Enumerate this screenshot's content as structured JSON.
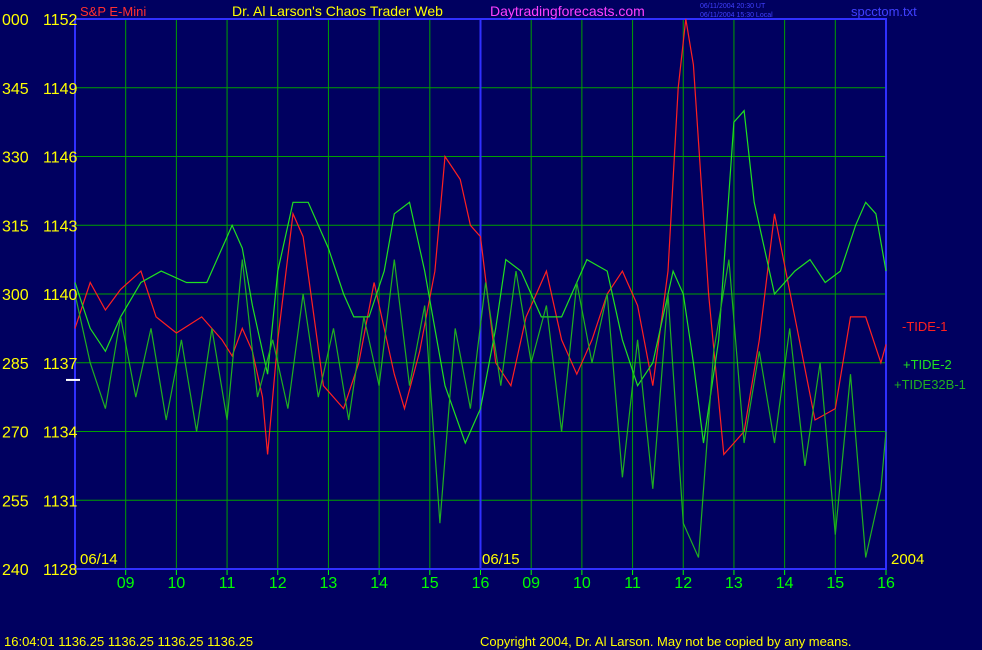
{
  "header": {
    "instrument": "S&P E-Mini",
    "title": "Dr. Al Larson's Chaos Trader Web",
    "site": "Daytradingforecasts.com",
    "time_utc": "06/11/2004 20:30 UT",
    "time_local": "06/11/2004 15:30 Local",
    "filename": "spcctom.txt"
  },
  "footer": {
    "quote": "16:04:01  1136.25 1136.25 1136.25 1136.25",
    "copyright": "Copyright 2004, Dr. Al Larson. May not be copied by any means."
  },
  "colors": {
    "background": "#000060",
    "grid": "#00a000",
    "frame": "#3030ff",
    "price_label": "#ffff00",
    "time_label": "#00ff00",
    "header_title": "#ffff00",
    "header_site": "#ff40ff",
    "instrument": "#ff3030",
    "tide1": "#ff2020",
    "tide2": "#20e020",
    "tide32b": "#20b020"
  },
  "chart_data": {
    "type": "line",
    "title": "Dr. Al Larson's Chaos Trader Web",
    "y_ticks": [
      {
        "left": "000",
        "price": "1152",
        "value": 1152
      },
      {
        "left": "345",
        "price": "1149",
        "value": 1149
      },
      {
        "left": "330",
        "price": "1146",
        "value": 1146
      },
      {
        "left": "315",
        "price": "1143",
        "value": 1143
      },
      {
        "left": "300",
        "price": "1140",
        "value": 1140
      },
      {
        "left": "285",
        "price": "1137",
        "value": 1137
      },
      {
        "left": "270",
        "price": "1134",
        "value": 1134
      },
      {
        "left": "255",
        "price": "1131",
        "value": 1131
      },
      {
        "left": "240",
        "price": "1128",
        "value": 1128
      }
    ],
    "ylim": [
      1128,
      1152
    ],
    "x_ticks": [
      {
        "label": "09",
        "hour": 1
      },
      {
        "label": "10",
        "hour": 2
      },
      {
        "label": "11",
        "hour": 3
      },
      {
        "label": "12",
        "hour": 4
      },
      {
        "label": "13",
        "hour": 5
      },
      {
        "label": "14",
        "hour": 6
      },
      {
        "label": "15",
        "hour": 7
      },
      {
        "label": "16",
        "hour": 8
      },
      {
        "label": "09",
        "hour": 9
      },
      {
        "label": "10",
        "hour": 10
      },
      {
        "label": "11",
        "hour": 11
      },
      {
        "label": "12",
        "hour": 12
      },
      {
        "label": "13",
        "hour": 13
      },
      {
        "label": "14",
        "hour": 14
      },
      {
        "label": "15",
        "hour": 15
      },
      {
        "label": "16",
        "hour": 16
      }
    ],
    "xlim": [
      0,
      16
    ],
    "date_labels": [
      {
        "label": "06/14",
        "hour": 0
      },
      {
        "label": "06/15",
        "hour": 8
      }
    ],
    "year_label": "2004",
    "current_price": 1136.25,
    "series": [
      {
        "name": "-TIDE-1",
        "color": "#ff2020",
        "x": [
          0,
          0.3,
          0.6,
          0.9,
          1.3,
          1.6,
          2.0,
          2.5,
          2.9,
          3.1,
          3.3,
          3.5,
          3.7,
          3.8,
          4.0,
          4.3,
          4.5,
          4.9,
          5.3,
          5.6,
          5.9,
          6.1,
          6.3,
          6.5,
          6.8,
          7.1,
          7.3,
          7.6,
          7.8,
          8.0,
          8.3,
          8.6,
          8.9,
          9.1,
          9.3,
          9.6,
          9.9,
          10.2,
          10.5,
          10.8,
          11.1,
          11.4,
          11.7,
          11.9,
          12.05,
          12.2,
          12.5,
          12.8,
          13.2,
          13.5,
          13.8,
          14.2,
          14.6,
          15.0,
          15.3,
          15.6,
          15.9,
          16.0
        ],
        "y": [
          1138.5,
          1140.5,
          1139.3,
          1140.2,
          1141.0,
          1139.0,
          1138.3,
          1139.0,
          1138.0,
          1137.3,
          1138.5,
          1137.5,
          1135.5,
          1133.0,
          1138.0,
          1143.5,
          1142.5,
          1136.0,
          1135.0,
          1137.0,
          1140.5,
          1138.5,
          1136.5,
          1135.0,
          1137.5,
          1141.0,
          1146.0,
          1145.0,
          1143.0,
          1142.5,
          1137.0,
          1136.0,
          1139.0,
          1140.0,
          1141.0,
          1138.0,
          1136.5,
          1138.0,
          1140.0,
          1141.0,
          1139.5,
          1136.0,
          1141.0,
          1149.0,
          1152.0,
          1150.0,
          1140.0,
          1133.0,
          1134.0,
          1138.0,
          1143.5,
          1139.0,
          1134.5,
          1135.0,
          1139.0,
          1139.0,
          1137.0,
          1137.8
        ]
      },
      {
        "name": "+TIDE-2",
        "color": "#20e020",
        "x": [
          0,
          0.3,
          0.6,
          0.9,
          1.3,
          1.7,
          2.2,
          2.6,
          3.0,
          3.1,
          3.3,
          3.5,
          3.7,
          3.8,
          4.0,
          4.3,
          4.6,
          5.0,
          5.3,
          5.5,
          5.8,
          6.1,
          6.3,
          6.6,
          6.9,
          7.3,
          7.7,
          8.0,
          8.3,
          8.5,
          8.8,
          9.2,
          9.6,
          9.8,
          10.1,
          10.5,
          10.8,
          11.1,
          11.4,
          11.8,
          12.0,
          12.2,
          12.4,
          12.7,
          13.0,
          13.2,
          13.4,
          13.8,
          14.2,
          14.5,
          14.8,
          15.1,
          15.4,
          15.6,
          15.8,
          16.0
        ],
        "y": [
          1140.5,
          1138.5,
          1137.5,
          1139.0,
          1140.5,
          1141.0,
          1140.5,
          1140.5,
          1142.5,
          1143.0,
          1142.0,
          1139.5,
          1137.5,
          1136.5,
          1141.0,
          1144.0,
          1144.0,
          1142.0,
          1140.0,
          1139.0,
          1139.0,
          1141.0,
          1143.5,
          1144.0,
          1141.0,
          1136.0,
          1133.5,
          1135.0,
          1138.5,
          1141.5,
          1141.0,
          1139.0,
          1139.0,
          1140.0,
          1141.5,
          1141.0,
          1138.0,
          1136.0,
          1137.0,
          1141.0,
          1140.0,
          1137.0,
          1133.5,
          1138.0,
          1147.5,
          1148.0,
          1144.0,
          1140.0,
          1141.0,
          1141.5,
          1140.5,
          1141.0,
          1143.0,
          1144.0,
          1143.5,
          1141.0
        ]
      },
      {
        "name": "+TIDE32B-1",
        "color": "#20b020",
        "x": [
          0,
          0.3,
          0.6,
          0.9,
          1.2,
          1.5,
          1.8,
          2.1,
          2.4,
          2.7,
          3.0,
          3.3,
          3.6,
          3.9,
          4.2,
          4.5,
          4.8,
          5.1,
          5.4,
          5.7,
          6.0,
          6.3,
          6.6,
          6.9,
          7.2,
          7.5,
          7.8,
          8.1,
          8.4,
          8.7,
          9.0,
          9.3,
          9.6,
          9.9,
          10.2,
          10.5,
          10.8,
          11.1,
          11.4,
          11.7,
          12.0,
          12.3,
          12.6,
          12.9,
          13.2,
          13.5,
          13.8,
          14.1,
          14.4,
          14.7,
          15.0,
          15.3,
          15.6,
          15.9,
          16.0
        ],
        "y": [
          1140.0,
          1137.0,
          1135.0,
          1139.0,
          1135.5,
          1138.5,
          1134.5,
          1138.0,
          1134.0,
          1138.5,
          1134.5,
          1141.5,
          1135.5,
          1138.0,
          1135.0,
          1140.0,
          1135.5,
          1138.5,
          1134.5,
          1139.0,
          1136.0,
          1141.5,
          1136.0,
          1139.5,
          1130.0,
          1138.5,
          1135.0,
          1140.5,
          1136.0,
          1141.0,
          1137.0,
          1139.5,
          1134.0,
          1140.5,
          1137.0,
          1140.0,
          1132.0,
          1138.0,
          1131.5,
          1140.0,
          1130.0,
          1128.5,
          1137.5,
          1141.5,
          1133.5,
          1137.5,
          1133.5,
          1138.5,
          1132.5,
          1137.0,
          1129.5,
          1136.5,
          1128.5,
          1131.5,
          1134.0
        ]
      }
    ]
  }
}
